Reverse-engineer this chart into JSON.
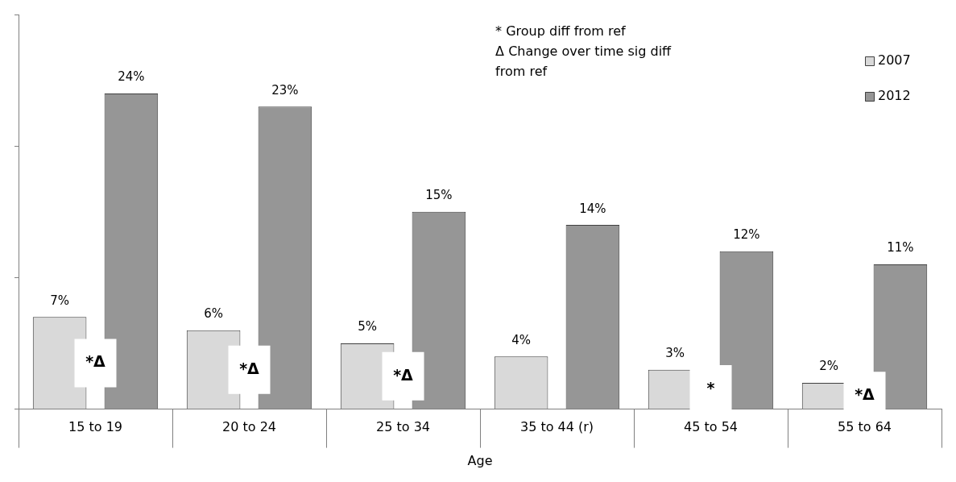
{
  "chart_data": {
    "type": "bar",
    "xlabel": "Age",
    "categories": [
      "15 to 19",
      "20 to 24",
      "25 to 34",
      "35 to 44 (r)",
      "45 to 54",
      "55 to 64"
    ],
    "series": [
      {
        "name": "2007",
        "color": "#d9d9d9",
        "values": [
          7,
          6,
          5,
          4,
          3,
          2
        ],
        "value_labels": [
          "7%",
          "6%",
          "5%",
          "4%",
          "3%",
          "2%"
        ]
      },
      {
        "name": "2012",
        "color": "#969696",
        "values": [
          24,
          23,
          15,
          14,
          12,
          11
        ],
        "value_labels": [
          "24%",
          "23%",
          "15%",
          "14%",
          "12%",
          "11%"
        ]
      }
    ],
    "ylim": [
      0,
      30
    ],
    "yticks": [
      {
        "value": 0,
        "label": null
      },
      {
        "value": 10,
        "label": null
      },
      {
        "value": 20,
        "label": null
      },
      {
        "value": 30,
        "label": null
      }
    ],
    "tick_labels": "x",
    "grid": false,
    "legend": "top right",
    "annotations": [
      "* Group diff from ref",
      "Δ Change over time sig diff from ref",
      "*Δ",
      "*Δ",
      "*Δ",
      "*",
      "*Δ"
    ]
  }
}
